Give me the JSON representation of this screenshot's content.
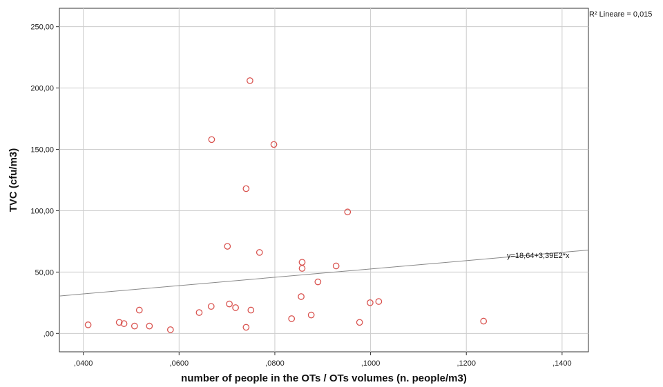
{
  "chart_data": {
    "type": "scatter",
    "title": "",
    "xlabel": "number of people in the OTs / OTs volumes (n. people/m3)",
    "ylabel": "TVC (cfu/m3)",
    "xlim": [
      0.035,
      0.1455
    ],
    "ylim": [
      -15,
      265
    ],
    "x_ticks": [
      0.04,
      0.06,
      0.08,
      0.1,
      0.12,
      0.14
    ],
    "x_tick_labels": [
      ",0400",
      ",0600",
      ",0800",
      ",1000",
      ",1200",
      ",1400"
    ],
    "y_ticks": [
      0,
      50,
      100,
      150,
      200,
      250
    ],
    "y_tick_labels": [
      ",00",
      "50,00",
      "100,00",
      "150,00",
      "200,00",
      "250,00"
    ],
    "grid": true,
    "marker_color": "#d9534f",
    "points": [
      {
        "x": 0.041,
        "y": 7
      },
      {
        "x": 0.0475,
        "y": 9
      },
      {
        "x": 0.0485,
        "y": 8
      },
      {
        "x": 0.0507,
        "y": 6
      },
      {
        "x": 0.0517,
        "y": 19
      },
      {
        "x": 0.0538,
        "y": 6
      },
      {
        "x": 0.0582,
        "y": 3
      },
      {
        "x": 0.0642,
        "y": 17
      },
      {
        "x": 0.0667,
        "y": 22
      },
      {
        "x": 0.0668,
        "y": 158
      },
      {
        "x": 0.0701,
        "y": 71
      },
      {
        "x": 0.0705,
        "y": 24
      },
      {
        "x": 0.0718,
        "y": 21
      },
      {
        "x": 0.074,
        "y": 118
      },
      {
        "x": 0.074,
        "y": 5
      },
      {
        "x": 0.0748,
        "y": 206
      },
      {
        "x": 0.075,
        "y": 19
      },
      {
        "x": 0.0768,
        "y": 66
      },
      {
        "x": 0.0798,
        "y": 154
      },
      {
        "x": 0.0835,
        "y": 12
      },
      {
        "x": 0.0855,
        "y": 30
      },
      {
        "x": 0.0857,
        "y": 58
      },
      {
        "x": 0.0857,
        "y": 53
      },
      {
        "x": 0.0876,
        "y": 15
      },
      {
        "x": 0.089,
        "y": 42
      },
      {
        "x": 0.0928,
        "y": 55
      },
      {
        "x": 0.0952,
        "y": 99
      },
      {
        "x": 0.0977,
        "y": 9
      },
      {
        "x": 0.0999,
        "y": 25
      },
      {
        "x": 0.1017,
        "y": 26
      },
      {
        "x": 0.1236,
        "y": 10
      }
    ],
    "fit_line": {
      "intercept": 18.64,
      "slope": 339,
      "label": "y=18,64+3,39E2*x",
      "color": "#888888"
    },
    "r2_label": "R² Lineare = 0,015"
  }
}
